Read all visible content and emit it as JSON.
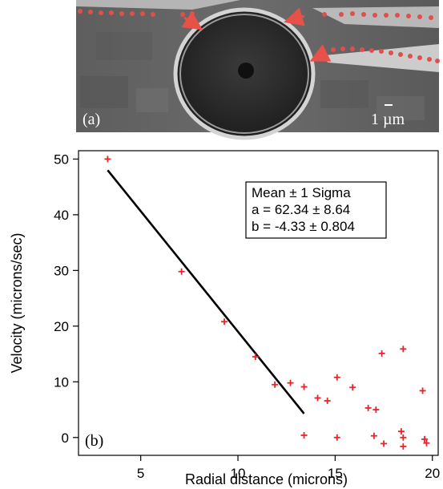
{
  "panel_a": {
    "label": "(a)",
    "scale_label": "1 µm",
    "description_colors": {
      "bead_dots": "#e0504a",
      "arrows": "#e8504a"
    }
  },
  "chart_data": {
    "type": "scatter",
    "panel_label": "(b)",
    "xlabel": "Radial distance (microns)",
    "ylabel": "Velocity (microns/sec)",
    "xlim": [
      1.8,
      20.3
    ],
    "ylim": [
      -3.2,
      51.5
    ],
    "xticks": [
      5,
      10,
      15,
      20
    ],
    "yticks": [
      0,
      10,
      20,
      30,
      40,
      50
    ],
    "grid": false,
    "legend_position": "top-right",
    "legend_lines": [
      "Mean ± 1 Sigma",
      "a = 62.34 ± 8.64",
      "b = -4.33 ± 0.804"
    ],
    "marker_color": "#e8242b",
    "fit_color": "#000000",
    "points": [
      {
        "x": 3.3,
        "y": 50.0
      },
      {
        "x": 7.1,
        "y": 29.8
      },
      {
        "x": 9.3,
        "y": 20.8
      },
      {
        "x": 10.9,
        "y": 14.5
      },
      {
        "x": 11.9,
        "y": 9.5
      },
      {
        "x": 12.7,
        "y": 9.8
      },
      {
        "x": 13.4,
        "y": 9.1
      },
      {
        "x": 13.4,
        "y": 0.4
      },
      {
        "x": 14.1,
        "y": 7.1
      },
      {
        "x": 14.6,
        "y": 6.6
      },
      {
        "x": 15.1,
        "y": 10.8
      },
      {
        "x": 15.1,
        "y": 0.0
      },
      {
        "x": 15.9,
        "y": 9.0
      },
      {
        "x": 16.7,
        "y": 5.3
      },
      {
        "x": 17.0,
        "y": 0.3
      },
      {
        "x": 17.1,
        "y": 5.0
      },
      {
        "x": 17.4,
        "y": 15.1
      },
      {
        "x": 17.5,
        "y": -1.1
      },
      {
        "x": 18.4,
        "y": 1.1
      },
      {
        "x": 18.5,
        "y": 15.9
      },
      {
        "x": 18.5,
        "y": 0.0
      },
      {
        "x": 18.5,
        "y": -1.6
      },
      {
        "x": 19.5,
        "y": 8.4
      },
      {
        "x": 19.6,
        "y": -0.3
      },
      {
        "x": 19.7,
        "y": -1.0
      }
    ],
    "fit_line": {
      "x1": 3.3,
      "y1": 48.0,
      "x2": 13.4,
      "y2": 4.3
    }
  }
}
